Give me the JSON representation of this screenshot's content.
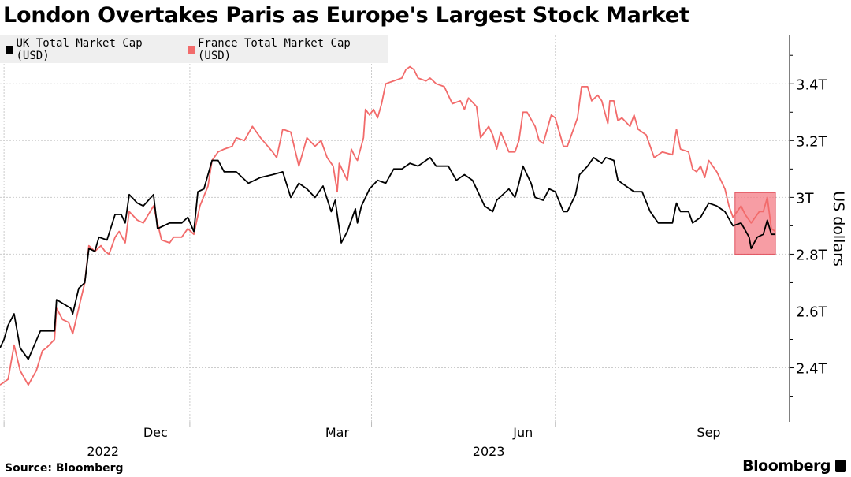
{
  "chart_data": {
    "type": "line",
    "title": "London Overtakes Paris as Europe's Largest Stock Market",
    "ylabel": "US dollars",
    "xlabel": "",
    "x_unit": "days since 2022-10-01",
    "xlim": [
      -2,
      389
    ],
    "ylim": [
      2.21,
      3.57
    ],
    "grid": true,
    "legend_position": "top-left",
    "y_ticks": [
      {
        "value": 2.4,
        "label": "2.4T"
      },
      {
        "value": 2.6,
        "label": "2.6T"
      },
      {
        "value": 2.8,
        "label": "2.8T"
      },
      {
        "value": 3.0,
        "label": "3T"
      },
      {
        "value": 3.2,
        "label": "3.2T"
      },
      {
        "value": 3.4,
        "label": "3.4T"
      }
    ],
    "y_minor_ticks": [
      2.3,
      2.5,
      2.7,
      2.9,
      3.1,
      3.3,
      3.5
    ],
    "x_gridlines": [
      0,
      92,
      182,
      273,
      365
    ],
    "x_ticks": [
      {
        "value": 75,
        "label": "Dec"
      },
      {
        "value": 165,
        "label": "Mar"
      },
      {
        "value": 257,
        "label": "Jun"
      },
      {
        "value": 349,
        "label": "Sep"
      }
    ],
    "x_year_labels": [
      {
        "value": 49,
        "label": "2022"
      },
      {
        "value": 240,
        "label": "2023"
      }
    ],
    "highlight": {
      "x": [
        362,
        382
      ],
      "y": [
        2.8,
        3.017
      ],
      "color": "#f47c86"
    },
    "series": [
      {
        "name": "UK Total Market Cap (USD)",
        "color": "#000000",
        "points": [
          [
            -2,
            2.47
          ],
          [
            0,
            2.5
          ],
          [
            2,
            2.55
          ],
          [
            5,
            2.59
          ],
          [
            8,
            2.47
          ],
          [
            12,
            2.43
          ],
          [
            18,
            2.53
          ],
          [
            25,
            2.53
          ],
          [
            26,
            2.64
          ],
          [
            33,
            2.61
          ],
          [
            34,
            2.59
          ],
          [
            37,
            2.68
          ],
          [
            40,
            2.7
          ],
          [
            42,
            2.82
          ],
          [
            45,
            2.81
          ],
          [
            47,
            2.86
          ],
          [
            51,
            2.85
          ],
          [
            55,
            2.94
          ],
          [
            58,
            2.94
          ],
          [
            60,
            2.91
          ],
          [
            62,
            3.01
          ],
          [
            66,
            2.98
          ],
          [
            69,
            2.97
          ],
          [
            74,
            3.01
          ],
          [
            76,
            2.89
          ],
          [
            82,
            2.91
          ],
          [
            88,
            2.91
          ],
          [
            91,
            2.93
          ],
          [
            94,
            2.88
          ],
          [
            96,
            3.02
          ],
          [
            99,
            3.03
          ],
          [
            103,
            3.13
          ],
          [
            106,
            3.13
          ],
          [
            109,
            3.09
          ],
          [
            115,
            3.09
          ],
          [
            121,
            3.05
          ],
          [
            127,
            3.07
          ],
          [
            133,
            3.08
          ],
          [
            138,
            3.09
          ],
          [
            142,
            3.0
          ],
          [
            146,
            3.05
          ],
          [
            150,
            3.03
          ],
          [
            154,
            3.0
          ],
          [
            158,
            3.04
          ],
          [
            162,
            2.95
          ],
          [
            164,
            2.99
          ],
          [
            167,
            2.84
          ],
          [
            170,
            2.88
          ],
          [
            174,
            2.96
          ],
          [
            175,
            2.91
          ],
          [
            177,
            2.97
          ],
          [
            181,
            3.03
          ],
          [
            185,
            3.06
          ],
          [
            189,
            3.05
          ],
          [
            193,
            3.1
          ],
          [
            197,
            3.1
          ],
          [
            201,
            3.12
          ],
          [
            205,
            3.11
          ],
          [
            211,
            3.14
          ],
          [
            214,
            3.11
          ],
          [
            220,
            3.11
          ],
          [
            224,
            3.06
          ],
          [
            228,
            3.08
          ],
          [
            232,
            3.06
          ],
          [
            236,
            3.0
          ],
          [
            238,
            2.97
          ],
          [
            242,
            2.95
          ],
          [
            244,
            2.99
          ],
          [
            250,
            3.03
          ],
          [
            253,
            3.0
          ],
          [
            255,
            3.05
          ],
          [
            257,
            3.11
          ],
          [
            261,
            3.05
          ],
          [
            263,
            3.0
          ],
          [
            267,
            2.99
          ],
          [
            270,
            3.03
          ],
          [
            273,
            3.02
          ],
          [
            277,
            2.95
          ],
          [
            279,
            2.95
          ],
          [
            283,
            3.01
          ],
          [
            285,
            3.08
          ],
          [
            289,
            3.11
          ],
          [
            292,
            3.14
          ],
          [
            296,
            3.12
          ],
          [
            298,
            3.14
          ],
          [
            302,
            3.13
          ],
          [
            304,
            3.06
          ],
          [
            308,
            3.04
          ],
          [
            312,
            3.02
          ],
          [
            316,
            3.02
          ],
          [
            320,
            2.95
          ],
          [
            324,
            2.91
          ],
          [
            328,
            2.91
          ],
          [
            331,
            2.91
          ],
          [
            333,
            2.98
          ],
          [
            335,
            2.95
          ],
          [
            339,
            2.95
          ],
          [
            341,
            2.91
          ],
          [
            345,
            2.93
          ],
          [
            349,
            2.98
          ],
          [
            353,
            2.97
          ],
          [
            357,
            2.95
          ],
          [
            361,
            2.9
          ],
          [
            365,
            2.91
          ],
          [
            369,
            2.86
          ],
          [
            370,
            2.82
          ],
          [
            373,
            2.86
          ],
          [
            376,
            2.87
          ],
          [
            378,
            2.92
          ],
          [
            380,
            2.87
          ],
          [
            382,
            2.87
          ]
        ]
      },
      {
        "name": "France Total Market Cap (USD)",
        "color": "#f26b6b",
        "points": [
          [
            -2,
            2.34
          ],
          [
            0,
            2.35
          ],
          [
            2,
            2.36
          ],
          [
            5,
            2.48
          ],
          [
            8,
            2.39
          ],
          [
            12,
            2.34
          ],
          [
            16,
            2.39
          ],
          [
            19,
            2.46
          ],
          [
            21,
            2.47
          ],
          [
            25,
            2.5
          ],
          [
            26,
            2.61
          ],
          [
            29,
            2.57
          ],
          [
            32,
            2.56
          ],
          [
            34,
            2.52
          ],
          [
            37,
            2.61
          ],
          [
            40,
            2.7
          ],
          [
            42,
            2.83
          ],
          [
            45,
            2.81
          ],
          [
            48,
            2.83
          ],
          [
            50,
            2.81
          ],
          [
            52,
            2.8
          ],
          [
            55,
            2.86
          ],
          [
            57,
            2.88
          ],
          [
            60,
            2.84
          ],
          [
            62,
            2.95
          ],
          [
            66,
            2.92
          ],
          [
            69,
            2.91
          ],
          [
            74,
            2.97
          ],
          [
            78,
            2.85
          ],
          [
            82,
            2.84
          ],
          [
            84,
            2.86
          ],
          [
            88,
            2.86
          ],
          [
            91,
            2.89
          ],
          [
            94,
            2.87
          ],
          [
            97,
            2.97
          ],
          [
            101,
            3.04
          ],
          [
            103,
            3.13
          ],
          [
            106,
            3.16
          ],
          [
            109,
            3.17
          ],
          [
            113,
            3.18
          ],
          [
            115,
            3.21
          ],
          [
            119,
            3.2
          ],
          [
            123,
            3.25
          ],
          [
            127,
            3.21
          ],
          [
            133,
            3.16
          ],
          [
            135,
            3.14
          ],
          [
            138,
            3.24
          ],
          [
            142,
            3.23
          ],
          [
            146,
            3.11
          ],
          [
            150,
            3.21
          ],
          [
            154,
            3.18
          ],
          [
            157,
            3.2
          ],
          [
            160,
            3.14
          ],
          [
            163,
            3.11
          ],
          [
            165,
            3.02
          ],
          [
            166,
            3.12
          ],
          [
            170,
            3.06
          ],
          [
            172,
            3.17
          ],
          [
            174,
            3.14
          ],
          [
            175,
            3.13
          ],
          [
            178,
            3.21
          ],
          [
            179,
            3.31
          ],
          [
            181,
            3.29
          ],
          [
            183,
            3.31
          ],
          [
            185,
            3.28
          ],
          [
            187,
            3.33
          ],
          [
            189,
            3.4
          ],
          [
            193,
            3.41
          ],
          [
            197,
            3.42
          ],
          [
            199,
            3.45
          ],
          [
            201,
            3.46
          ],
          [
            203,
            3.45
          ],
          [
            205,
            3.42
          ],
          [
            209,
            3.41
          ],
          [
            211,
            3.42
          ],
          [
            214,
            3.4
          ],
          [
            218,
            3.39
          ],
          [
            222,
            3.33
          ],
          [
            226,
            3.34
          ],
          [
            228,
            3.31
          ],
          [
            230,
            3.35
          ],
          [
            234,
            3.32
          ],
          [
            236,
            3.21
          ],
          [
            240,
            3.25
          ],
          [
            242,
            3.22
          ],
          [
            244,
            3.17
          ],
          [
            246,
            3.23
          ],
          [
            250,
            3.16
          ],
          [
            253,
            3.16
          ],
          [
            255,
            3.2
          ],
          [
            257,
            3.3
          ],
          [
            259,
            3.3
          ],
          [
            263,
            3.25
          ],
          [
            265,
            3.2
          ],
          [
            267,
            3.19
          ],
          [
            271,
            3.29
          ],
          [
            273,
            3.28
          ],
          [
            277,
            3.18
          ],
          [
            279,
            3.18
          ],
          [
            281,
            3.22
          ],
          [
            284,
            3.28
          ],
          [
            286,
            3.39
          ],
          [
            289,
            3.39
          ],
          [
            291,
            3.34
          ],
          [
            294,
            3.36
          ],
          [
            296,
            3.34
          ],
          [
            299,
            3.26
          ],
          [
            300,
            3.34
          ],
          [
            302,
            3.34
          ],
          [
            304,
            3.27
          ],
          [
            306,
            3.28
          ],
          [
            310,
            3.25
          ],
          [
            312,
            3.29
          ],
          [
            314,
            3.24
          ],
          [
            318,
            3.22
          ],
          [
            322,
            3.14
          ],
          [
            326,
            3.16
          ],
          [
            331,
            3.15
          ],
          [
            333,
            3.24
          ],
          [
            335,
            3.17
          ],
          [
            339,
            3.16
          ],
          [
            341,
            3.1
          ],
          [
            343,
            3.09
          ],
          [
            345,
            3.11
          ],
          [
            347,
            3.07
          ],
          [
            349,
            3.13
          ],
          [
            353,
            3.09
          ],
          [
            357,
            3.03
          ],
          [
            359,
            2.97
          ],
          [
            361,
            2.93
          ],
          [
            363,
            2.95
          ],
          [
            365,
            2.97
          ],
          [
            367,
            2.94
          ],
          [
            370,
            2.91
          ],
          [
            374,
            2.95
          ],
          [
            376,
            2.95
          ],
          [
            378,
            3.0
          ],
          [
            380,
            2.89
          ],
          [
            382,
            2.88
          ]
        ]
      }
    ]
  },
  "footer": {
    "source": "Source: Bloomberg",
    "brand": "Bloomberg"
  }
}
